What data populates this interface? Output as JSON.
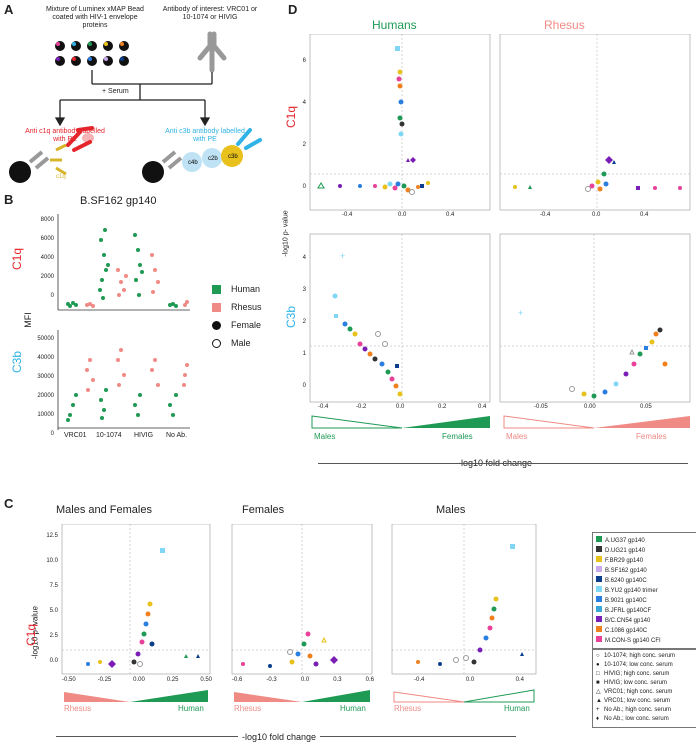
{
  "colors": {
    "human": "#1e9a55",
    "rhesus": "#f08a85",
    "c1q_red": "#e5252c",
    "c3b_cyan": "#2fb3e6",
    "antibody_gray": "#888888",
    "c1q_gold": "#d8b42a"
  },
  "panel_a": {
    "letter": "A",
    "bead_text": "Mixture of Luminex xMAP Bead coated with HIV-1 envelope proteins",
    "antibody_text": "Antibody of interest: VRC01 or 10-1074 or HIVIG",
    "serum_label": "+ Serum",
    "anti_c1q_label": "Anti c1q antibody labelled with PE",
    "anti_c3b_label": "Anti c3b antibody labelled with PE",
    "c1q_label": "c1q",
    "c4b_label": "c4b",
    "c2b_label": "c2b",
    "c3b_label": "c3b"
  },
  "panel_b": {
    "letter": "B",
    "title": "B.SF162 gp140",
    "ylabel": "MFI",
    "c1q_label": "C1q",
    "c3b_label": "C3b",
    "top_ticks": [
      "8000",
      "6000",
      "4000",
      "2000",
      "0"
    ],
    "bottom_ticks": [
      "50000",
      "40000",
      "30000",
      "20000",
      "10000",
      "0"
    ],
    "categories": [
      "VRC01",
      "10-1074",
      "HIVIG",
      "No Ab."
    ],
    "legend": [
      {
        "label": "Human"
      },
      {
        "label": "Rhesus"
      },
      {
        "label": "Female"
      },
      {
        "label": "Male"
      }
    ]
  },
  "panel_c": {
    "letter": "C",
    "ylabel": "-log10 p- value",
    "row_label": "C1q",
    "xlabel": "-log10 fold change",
    "subpanels": [
      {
        "title": "Males and Females",
        "xticks": [
          "-0.50",
          "-0.25",
          "0.00",
          "0.25",
          "0.50"
        ],
        "left": "Rhesus",
        "right": "Human"
      },
      {
        "title": "Females",
        "xticks": [
          "-0.6",
          "-0.3",
          "0.0",
          "0.3",
          "0.6"
        ],
        "left": "Rhesus",
        "right": "Human"
      },
      {
        "title": "Males",
        "xticks": [
          "-0.4",
          "0.0",
          "0.4"
        ],
        "left": "Rhesus",
        "right": "Human"
      }
    ],
    "yticks": [
      "12.5",
      "10.0",
      "7.5",
      "5.0",
      "2.5",
      "0.0"
    ]
  },
  "panel_d": {
    "letter": "D",
    "humans_title": "Humans",
    "rhesus_title": "Rhesus",
    "ylabel": "-log10 p- value",
    "c1q_label": "C1q",
    "c3b_label": "C3b",
    "xlabel": "-log10 fold change",
    "top_yticks": [
      "6",
      "4",
      "2",
      "0"
    ],
    "bottom_yticks": [
      "4",
      "3",
      "2",
      "1",
      "0"
    ],
    "top_left_xticks": [
      "-0.4",
      "0.0",
      "0.4"
    ],
    "top_right_xticks": [
      "-0.4",
      "0.0",
      "0.4"
    ],
    "bottom_left_xticks": [
      "-0.4",
      "-0.2",
      "0.0",
      "0.2",
      "0.4"
    ],
    "bottom_right_xticks": [
      "-0.05",
      "0.00",
      "0.05"
    ],
    "left_sex_left": "Males",
    "left_sex_right": "Females",
    "right_sex_left": "Males",
    "right_sex_right": "Females"
  },
  "legend_antigens": [
    {
      "label": "A.UG37 gp140",
      "color": "#1e9a55"
    },
    {
      "label": "D.UG21 gp140",
      "color": "#333333"
    },
    {
      "label": "F.BR29 gp140",
      "color": "#e8c11c"
    },
    {
      "label": "B.SF162 gp140",
      "color": "#c9a8ec"
    },
    {
      "label": "B.6240 gp140C",
      "color": "#0b3f8c"
    },
    {
      "label": "B.YU2 gp140 trimer",
      "color": "#7fd7f5"
    },
    {
      "label": "B.9021 gp140C",
      "color": "#2a7ee0"
    },
    {
      "label": "B.JFRL gp140CF",
      "color": "#39a6d8"
    },
    {
      "label": "B/C.CN54 gp140",
      "color": "#7a1fb5"
    },
    {
      "label": "C.1086 gp140C",
      "color": "#f0801e"
    },
    {
      "label": "M.CON-S gp140 CFI",
      "color": "#e8419a"
    }
  ],
  "legend_shapes": [
    {
      "label": "10-1074; high conc. serum",
      "glyph": "○"
    },
    {
      "label": "10-1074; low conc. serum",
      "glyph": "●"
    },
    {
      "label": "HIVIG; high conc. serum",
      "glyph": "□"
    },
    {
      "label": "HIVIG; low conc. serum",
      "glyph": "■"
    },
    {
      "label": "VRC01; high conc. serum",
      "glyph": "△"
    },
    {
      "label": "VRC01; low conc. serum",
      "glyph": "▲"
    },
    {
      "label": "No Ab.; high conc. serum",
      "glyph": "+"
    },
    {
      "label": "No Ab.; low conc. serum",
      "glyph": "♦"
    }
  ]
}
